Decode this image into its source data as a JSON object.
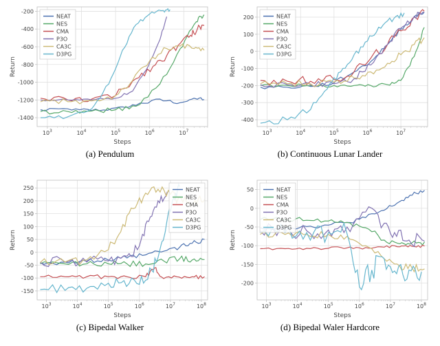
{
  "legend": {
    "items": [
      "NEAT",
      "NES",
      "CMA",
      "P3O",
      "CA3C",
      "D3PG"
    ],
    "colors": [
      "#4c72b0",
      "#55a868",
      "#c44e52",
      "#8172b2",
      "#ccb974",
      "#64b5cd"
    ]
  },
  "axis": {
    "xlabel": "Steps",
    "ylabel": "Return",
    "xticks_labels": [
      "10^3",
      "10^4",
      "10^5",
      "10^6",
      "10^7",
      "10^8"
    ],
    "grid_color": "#e0e0e0",
    "spine_color": "#bfbfbf",
    "background_color": "#ffffff",
    "line_width": 1.2,
    "label_fontsize": 9,
    "tick_fontsize": 8
  },
  "panels": {
    "a": {
      "caption": "(a) Pendulum",
      "legend_pos": "top-left",
      "type": "line",
      "ylim": [
        -1500,
        -150
      ],
      "yticks": [
        -1400,
        -1200,
        -1000,
        -800,
        -600,
        -400,
        -200
      ],
      "xlim_exp": [
        2.7,
        7.7
      ],
      "xticks_exp": [
        3,
        4,
        5,
        6,
        7
      ],
      "series": {
        "NEAT": [
          [
            2.8,
            -1310
          ],
          [
            3.6,
            -1300
          ],
          [
            4.3,
            -1320
          ],
          [
            5.0,
            -1290
          ],
          [
            5.6,
            -1260
          ],
          [
            6.3,
            -1190
          ],
          [
            6.9,
            -1230
          ],
          [
            7.3,
            -1180
          ],
          [
            7.6,
            -1195
          ]
        ],
        "NES": [
          [
            2.8,
            -1330
          ],
          [
            3.6,
            -1330
          ],
          [
            4.3,
            -1325
          ],
          [
            5.0,
            -1310
          ],
          [
            5.6,
            -1270
          ],
          [
            6.3,
            -1020
          ],
          [
            6.9,
            -620
          ],
          [
            7.3,
            -350
          ],
          [
            7.5,
            -260
          ],
          [
            7.6,
            -240
          ]
        ],
        "CMA": [
          [
            2.8,
            -1180
          ],
          [
            3.6,
            -1200
          ],
          [
            4.3,
            -1190
          ],
          [
            5.0,
            -1150
          ],
          [
            5.6,
            -960
          ],
          [
            6.1,
            -820
          ],
          [
            6.5,
            -700
          ],
          [
            6.9,
            -560
          ],
          [
            7.2,
            -470
          ],
          [
            7.4,
            -400
          ],
          [
            7.6,
            -360
          ]
        ],
        "P3O": [
          [
            2.8,
            -1200
          ],
          [
            3.6,
            -1200
          ],
          [
            4.3,
            -1200
          ],
          [
            5.0,
            -1180
          ],
          [
            5.5,
            -1100
          ],
          [
            5.9,
            -860
          ],
          [
            6.3,
            -520
          ],
          [
            6.5,
            -260
          ]
        ],
        "CA3C": [
          [
            2.8,
            -1220
          ],
          [
            3.6,
            -1220
          ],
          [
            4.3,
            -1210
          ],
          [
            5.0,
            -1150
          ],
          [
            5.5,
            -980
          ],
          [
            6.0,
            -760
          ],
          [
            6.5,
            -620
          ],
          [
            6.9,
            -590
          ],
          [
            7.3,
            -620
          ],
          [
            7.6,
            -640
          ]
        ],
        "D3PG": [
          [
            2.8,
            -1400
          ],
          [
            3.6,
            -1390
          ],
          [
            4.3,
            -1300
          ],
          [
            4.8,
            -1020
          ],
          [
            5.2,
            -640
          ],
          [
            5.6,
            -350
          ],
          [
            6.0,
            -230
          ],
          [
            6.4,
            -190
          ],
          [
            6.6,
            -180
          ]
        ]
      },
      "noise": {
        "NEAT": 18,
        "NES": 28,
        "CMA": 40,
        "P3O": 14,
        "CA3C": 35,
        "D3PG": 20
      }
    },
    "b": {
      "caption": "(b) Continuous Lunar Lander",
      "legend_pos": "top-left",
      "type": "line",
      "ylim": [
        -440,
        260
      ],
      "yticks": [
        -400,
        -300,
        -200,
        -100,
        0,
        100,
        200
      ],
      "xlim_exp": [
        2.7,
        7.8
      ],
      "xticks_exp": [
        3,
        4,
        5,
        6,
        7
      ],
      "series": {
        "NEAT": [
          [
            2.8,
            -210
          ],
          [
            3.6,
            -210
          ],
          [
            4.3,
            -205
          ],
          [
            5.0,
            -185
          ],
          [
            5.6,
            -120
          ],
          [
            6.1,
            -60
          ],
          [
            6.6,
            40
          ],
          [
            7.0,
            130
          ],
          [
            7.4,
            200
          ],
          [
            7.7,
            230
          ]
        ],
        "NES": [
          [
            2.8,
            -200
          ],
          [
            3.6,
            -200
          ],
          [
            4.3,
            -200
          ],
          [
            5.0,
            -200
          ],
          [
            5.6,
            -200
          ],
          [
            6.1,
            -200
          ],
          [
            6.6,
            -195
          ],
          [
            7.0,
            -170
          ],
          [
            7.4,
            -30
          ],
          [
            7.7,
            140
          ]
        ],
        "CMA": [
          [
            2.8,
            -170
          ],
          [
            3.6,
            -175
          ],
          [
            4.3,
            -175
          ],
          [
            5.0,
            -165
          ],
          [
            5.6,
            -120
          ],
          [
            6.1,
            -40
          ],
          [
            6.6,
            40
          ],
          [
            7.0,
            120
          ],
          [
            7.4,
            200
          ],
          [
            7.7,
            235
          ]
        ],
        "P3O": [
          [
            2.8,
            -195
          ],
          [
            3.6,
            -195
          ],
          [
            4.3,
            -195
          ],
          [
            5.0,
            -190
          ],
          [
            5.6,
            -160
          ],
          [
            6.1,
            -80
          ],
          [
            6.6,
            40
          ],
          [
            7.0,
            135
          ],
          [
            7.4,
            205
          ],
          [
            7.7,
            230
          ]
        ],
        "CA3C": [
          [
            2.8,
            -190
          ],
          [
            3.6,
            -190
          ],
          [
            4.3,
            -190
          ],
          [
            5.0,
            -180
          ],
          [
            5.6,
            -155
          ],
          [
            6.1,
            -120
          ],
          [
            6.6,
            -70
          ],
          [
            7.0,
            -20
          ],
          [
            7.4,
            40
          ],
          [
            7.7,
            80
          ]
        ],
        "D3PG": [
          [
            2.8,
            -420
          ],
          [
            3.6,
            -400
          ],
          [
            4.3,
            -340
          ],
          [
            4.8,
            -220
          ],
          [
            5.2,
            -120
          ],
          [
            5.6,
            -20
          ],
          [
            6.0,
            60
          ],
          [
            6.4,
            135
          ],
          [
            6.8,
            195
          ],
          [
            7.1,
            225
          ]
        ]
      },
      "noise": {
        "NEAT": 12,
        "NES": 10,
        "CMA": 28,
        "P3O": 18,
        "CA3C": 22,
        "D3PG": 20
      }
    },
    "c": {
      "caption": "(c) Bipedal Walker",
      "legend_pos": "top-right",
      "type": "line",
      "ylim": [
        -185,
        280
      ],
      "yticks": [
        -150,
        -100,
        -50,
        0,
        50,
        100,
        150,
        200,
        250
      ],
      "xlim_exp": [
        2.7,
        8.2
      ],
      "xticks_exp": [
        3,
        4,
        5,
        6,
        7,
        8
      ],
      "series": {
        "NEAT": [
          [
            2.8,
            -40
          ],
          [
            3.6,
            -38
          ],
          [
            4.3,
            -35
          ],
          [
            5.0,
            -30
          ],
          [
            5.6,
            -22
          ],
          [
            6.2,
            -10
          ],
          [
            6.8,
            5
          ],
          [
            7.3,
            20
          ],
          [
            7.7,
            35
          ],
          [
            8.1,
            50
          ]
        ],
        "NES": [
          [
            2.8,
            -45
          ],
          [
            3.6,
            -45
          ],
          [
            4.3,
            -45
          ],
          [
            5.0,
            -45
          ],
          [
            5.6,
            -45
          ],
          [
            6.2,
            -45
          ],
          [
            6.8,
            -35
          ],
          [
            7.3,
            -25
          ],
          [
            7.7,
            -30
          ],
          [
            8.1,
            -28
          ]
        ],
        "CMA": [
          [
            2.8,
            -95
          ],
          [
            3.6,
            -95
          ],
          [
            4.3,
            -95
          ],
          [
            5.0,
            -95
          ],
          [
            5.6,
            -95
          ],
          [
            6.2,
            -95
          ],
          [
            6.5,
            -60
          ],
          [
            6.7,
            -95
          ],
          [
            7.2,
            -95
          ],
          [
            7.7,
            -95
          ],
          [
            8.1,
            -95
          ]
        ],
        "P3O": [
          [
            2.8,
            -38
          ],
          [
            3.6,
            -38
          ],
          [
            4.3,
            -38
          ],
          [
            5.0,
            -34
          ],
          [
            5.6,
            -15
          ],
          [
            6.0,
            25
          ],
          [
            6.3,
            120
          ],
          [
            6.6,
            200
          ],
          [
            6.9,
            235
          ]
        ],
        "CA3C": [
          [
            2.8,
            -40
          ],
          [
            3.6,
            -38
          ],
          [
            4.3,
            -30
          ],
          [
            5.0,
            10
          ],
          [
            5.4,
            80
          ],
          [
            5.8,
            170
          ],
          [
            6.2,
            230
          ],
          [
            6.6,
            245
          ],
          [
            7.0,
            225
          ],
          [
            7.4,
            195
          ],
          [
            7.8,
            200
          ],
          [
            8.1,
            205
          ]
        ],
        "D3PG": [
          [
            2.8,
            -145
          ],
          [
            3.6,
            -148
          ],
          [
            4.3,
            -140
          ],
          [
            5.0,
            -120
          ],
          [
            5.5,
            -110
          ],
          [
            6.0,
            -125
          ],
          [
            6.4,
            -70
          ],
          [
            6.7,
            30
          ],
          [
            6.9,
            130
          ],
          [
            7.1,
            210
          ],
          [
            7.3,
            255
          ]
        ]
      },
      "noise": {
        "NEAT": 10,
        "NES": 12,
        "CMA": 8,
        "P3O": 22,
        "CA3C": 20,
        "D3PG": 24
      }
    },
    "d": {
      "caption": "(d) Bipedal Waler Hardcore",
      "legend_pos": "top-left",
      "type": "line",
      "ylim": [
        -245,
        75
      ],
      "yticks": [
        -200,
        -150,
        -100,
        -50,
        0,
        50
      ],
      "xlim_exp": [
        2.7,
        8.2
      ],
      "xticks_exp": [
        3,
        4,
        5,
        6,
        7,
        8
      ],
      "series": {
        "NEAT": [
          [
            2.8,
            -52
          ],
          [
            3.6,
            -51
          ],
          [
            4.3,
            -49
          ],
          [
            5.0,
            -45
          ],
          [
            5.6,
            -38
          ],
          [
            6.2,
            -25
          ],
          [
            6.8,
            -5
          ],
          [
            7.3,
            18
          ],
          [
            7.7,
            35
          ],
          [
            8.1,
            48
          ]
        ],
        "NES": [
          [
            2.8,
            -30
          ],
          [
            3.6,
            -31
          ],
          [
            4.3,
            -32
          ],
          [
            5.0,
            -34
          ],
          [
            5.6,
            -38
          ],
          [
            6.2,
            -52
          ],
          [
            6.8,
            -85
          ],
          [
            7.3,
            -95
          ],
          [
            7.7,
            -92
          ],
          [
            8.1,
            -90
          ]
        ],
        "CMA": [
          [
            2.8,
            -108
          ],
          [
            3.6,
            -108
          ],
          [
            4.3,
            -107
          ],
          [
            5.0,
            -107
          ],
          [
            5.6,
            -106
          ],
          [
            6.2,
            -105
          ],
          [
            6.8,
            -104
          ],
          [
            7.3,
            -103
          ],
          [
            7.7,
            -102
          ],
          [
            8.1,
            -101
          ]
        ],
        "P3O": [
          [
            2.8,
            -60
          ],
          [
            3.6,
            -60
          ],
          [
            4.3,
            -60
          ],
          [
            5.0,
            -58
          ],
          [
            5.6,
            -50
          ],
          [
            6.2,
            -10
          ],
          [
            6.8,
            -40
          ],
          [
            7.2,
            -75
          ],
          [
            7.6,
            -85
          ],
          [
            8.1,
            -88
          ]
        ],
        "CA3C": [
          [
            2.8,
            -70
          ],
          [
            3.6,
            -70
          ],
          [
            4.3,
            -70
          ],
          [
            5.0,
            -70
          ],
          [
            5.6,
            -75
          ],
          [
            6.2,
            -100
          ],
          [
            6.8,
            -135
          ],
          [
            7.3,
            -155
          ],
          [
            7.7,
            -160
          ],
          [
            8.1,
            -162
          ]
        ],
        "D3PG": [
          [
            2.8,
            -65
          ],
          [
            3.6,
            -65
          ],
          [
            4.3,
            -65
          ],
          [
            5.0,
            -65
          ],
          [
            5.6,
            -68
          ],
          [
            6.0,
            -210
          ],
          [
            6.4,
            -165
          ],
          [
            6.8,
            -135
          ],
          [
            7.2,
            -175
          ],
          [
            7.6,
            -165
          ],
          [
            8.0,
            -170
          ]
        ]
      },
      "noise": {
        "NEAT": 6,
        "NES": 8,
        "CMA": 4,
        "P3O": 22,
        "CA3C": 10,
        "D3PG": 30
      }
    }
  }
}
